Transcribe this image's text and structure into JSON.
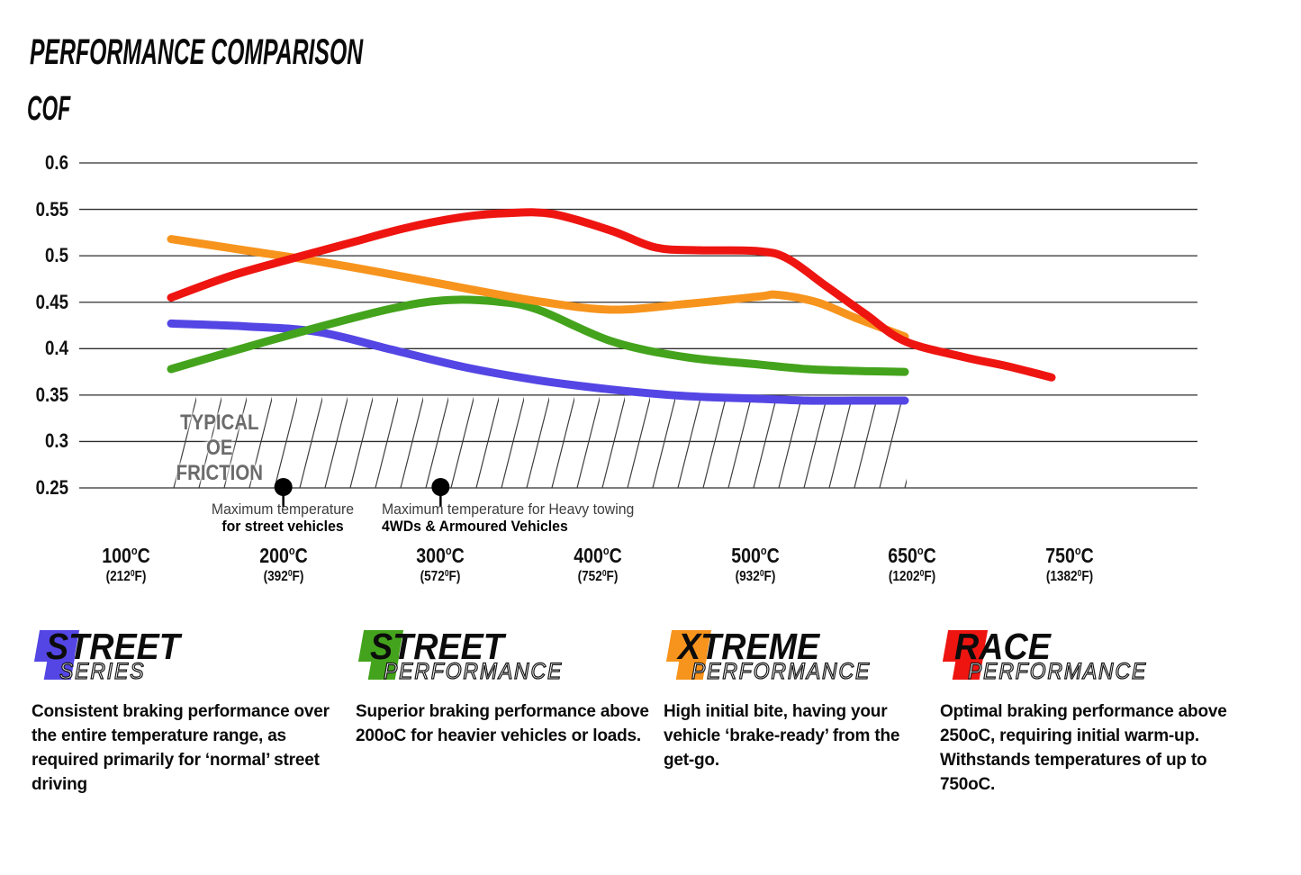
{
  "chart_data": {
    "type": "line",
    "title": "PERFORMANCE COMPARISON",
    "ylabel": "COF",
    "ylim": [
      0.25,
      0.6
    ],
    "grid": true,
    "y_ticks": [
      {
        "v": 0.6,
        "label": "0.6"
      },
      {
        "v": 0.55,
        "label": "0.55"
      },
      {
        "v": 0.5,
        "label": "0.5"
      },
      {
        "v": 0.45,
        "label": "0.45"
      },
      {
        "v": 0.4,
        "label": "0.4"
      },
      {
        "v": 0.35,
        "label": "0.35"
      },
      {
        "v": 0.3,
        "label": "0.3"
      },
      {
        "v": 0.25,
        "label": "0.25"
      }
    ],
    "x_ticks": [
      {
        "t": 100,
        "c": "100",
        "f": "212"
      },
      {
        "t": 200,
        "c": "200",
        "f": "392"
      },
      {
        "t": 300,
        "c": "300",
        "f": "572"
      },
      {
        "t": 400,
        "c": "400",
        "f": "752"
      },
      {
        "t": 500,
        "c": "500",
        "f": "932"
      },
      {
        "t": 650,
        "c": "650",
        "f": "1202"
      },
      {
        "t": 750,
        "c": "750",
        "f": "1382"
      }
    ],
    "units": {
      "sup_c": "o",
      "unit_c": "C",
      "sup_f": "0",
      "unit_f": "F",
      "open": "(",
      "close": ")"
    },
    "series": [
      {
        "name": "Street Series",
        "color": "#5446e4",
        "points": [
          [
            100,
            0.427
          ],
          [
            150,
            0.424
          ],
          [
            200,
            0.418
          ],
          [
            250,
            0.399
          ],
          [
            300,
            0.38
          ],
          [
            350,
            0.366
          ],
          [
            400,
            0.356
          ],
          [
            450,
            0.349
          ],
          [
            500,
            0.346
          ],
          [
            550,
            0.344
          ],
          [
            600,
            0.344
          ],
          [
            650,
            0.344
          ]
        ]
      },
      {
        "name": "Street Performance",
        "color": "#44a31c",
        "points": [
          [
            100,
            0.378
          ],
          [
            150,
            0.401
          ],
          [
            200,
            0.423
          ],
          [
            250,
            0.443
          ],
          [
            285,
            0.452
          ],
          [
            320,
            0.451
          ],
          [
            350,
            0.442
          ],
          [
            400,
            0.408
          ],
          [
            450,
            0.391
          ],
          [
            500,
            0.383
          ],
          [
            550,
            0.378
          ],
          [
            600,
            0.376
          ],
          [
            650,
            0.375
          ]
        ]
      },
      {
        "name": "Xtreme Performance",
        "color": "#f7941d",
        "points": [
          [
            100,
            0.518
          ],
          [
            150,
            0.506
          ],
          [
            200,
            0.494
          ],
          [
            250,
            0.48
          ],
          [
            300,
            0.465
          ],
          [
            350,
            0.451
          ],
          [
            400,
            0.442
          ],
          [
            450,
            0.448
          ],
          [
            500,
            0.456
          ],
          [
            520,
            0.458
          ],
          [
            560,
            0.45
          ],
          [
            600,
            0.433
          ],
          [
            650,
            0.413
          ]
        ]
      },
      {
        "name": "Race Performance",
        "color": "#ee1511",
        "points": [
          [
            100,
            0.455
          ],
          [
            140,
            0.478
          ],
          [
            180,
            0.496
          ],
          [
            220,
            0.513
          ],
          [
            260,
            0.53
          ],
          [
            300,
            0.542
          ],
          [
            330,
            0.546
          ],
          [
            360,
            0.545
          ],
          [
            400,
            0.527
          ],
          [
            430,
            0.509
          ],
          [
            460,
            0.506
          ],
          [
            500,
            0.505
          ],
          [
            530,
            0.497
          ],
          [
            570,
            0.467
          ],
          [
            610,
            0.437
          ],
          [
            650,
            0.408
          ],
          [
            690,
            0.391
          ],
          [
            720,
            0.381
          ],
          [
            750,
            0.369
          ]
        ]
      }
    ],
    "oe_region": {
      "label_line1": "TYPICAL OE",
      "label_line2": "FRICTION",
      "cof_min": 0.25,
      "cof_max": 0.35,
      "t_min": 100,
      "t_max": 650
    },
    "annotations": [
      {
        "t": 200,
        "line1": "Maximum temperature",
        "line2": "for street vehicles"
      },
      {
        "t": 300,
        "line1": "Maximum temperature for Heavy towing",
        "line2": "4WDs & Armoured Vehicles"
      }
    ]
  },
  "legend": [
    {
      "word1": "STREET",
      "word2": "SERIES",
      "color": "#5446e4",
      "description": "Consistent braking performance over the entire temperature range, as required primarily for ‘normal’ street driving"
    },
    {
      "word1": "STREET",
      "word2": "PERFORMANCE",
      "color": "#44a31c",
      "description": "Superior braking performance above 200oC for heavier vehicles or loads."
    },
    {
      "word1": "XTREME",
      "word2": "PERFORMANCE",
      "color": "#f7941d",
      "description": "High initial bite, having your vehicle ‘brake-ready’ from the get-go."
    },
    {
      "word1": "RACE",
      "word2": "PERFORMANCE",
      "color": "#ee1511",
      "description": "Optimal braking performance above 250oC, requiring initial warm-up. Withstands temperatures of up to 750oC."
    }
  ]
}
